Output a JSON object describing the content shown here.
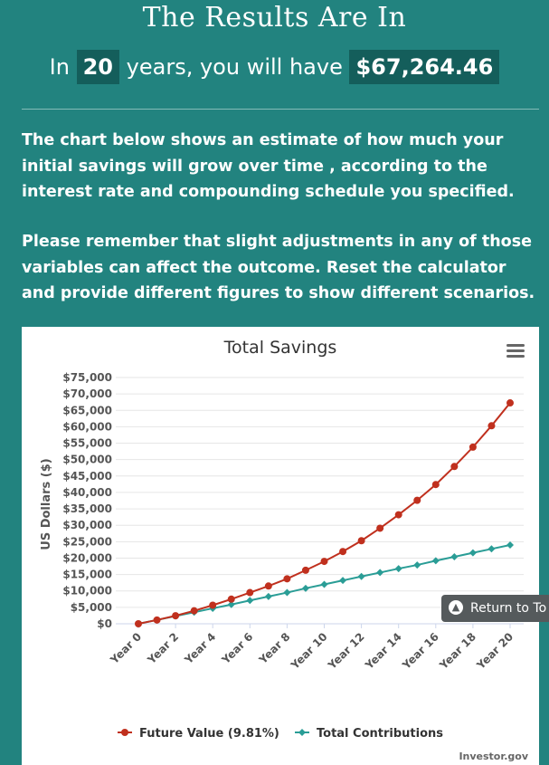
{
  "header": {
    "title": "The Results Are In",
    "summary_prefix": "In",
    "years": "20",
    "summary_middle": "years, you will have",
    "amount": "$67,264.46"
  },
  "paragraphs": [
    "The chart below shows an estimate of how much your initial savings will grow over time , according to the interest rate and compounding schedule you specified.",
    "Please remember that slight adjustments in any of those variables can affect the outcome. Reset the calculator and provide different figures to show different scenarios."
  ],
  "menu_icon": "hamburger-menu-icon",
  "return_button": {
    "label": "Return to To",
    "icon": "chevron-up-icon"
  },
  "credits": "Investor.gov",
  "colors": {
    "background": "#22837f",
    "pill": "#145e5b",
    "future": "#c0301e",
    "contrib": "#2a9d96"
  },
  "chart_data": {
    "type": "line",
    "title": "Total Savings",
    "ylabel": "US Dollars ($)",
    "xlabel": "",
    "ylim": [
      0,
      75000
    ],
    "yticks": [
      "$0",
      "$5,000",
      "$10,000",
      "$15,000",
      "$20,000",
      "$25,000",
      "$30,000",
      "$35,000",
      "$40,000",
      "$45,000",
      "$50,000",
      "$55,000",
      "$60,000",
      "$65,000",
      "$70,000",
      "$75,000"
    ],
    "xticks": [
      "Year 0",
      "Year 2",
      "Year 4",
      "Year 6",
      "Year 8",
      "Year 10",
      "Year 12",
      "Year 14",
      "Year 16",
      "Year 18",
      "Year 20"
    ],
    "x": [
      0,
      1,
      2,
      3,
      4,
      5,
      6,
      7,
      8,
      9,
      10,
      11,
      12,
      13,
      14,
      15,
      16,
      17,
      18,
      19,
      20
    ],
    "grid": true,
    "legend_position": "bottom",
    "series": [
      {
        "name": "Future Value (9.81%)",
        "color": "#c0301e",
        "marker": "circle",
        "values": [
          0,
          1150,
          2450,
          3950,
          5650,
          7500,
          9500,
          11500,
          13700,
          16300,
          19000,
          22000,
          25300,
          29100,
          33200,
          37600,
          42400,
          47900,
          53800,
          60300,
          67264
        ]
      },
      {
        "name": "Total Contributions",
        "color": "#2a9d96",
        "marker": "diamond",
        "values": [
          0,
          1150,
          2350,
          3500,
          4700,
          5850,
          7100,
          8300,
          9500,
          10800,
          12000,
          13200,
          14400,
          15600,
          16800,
          17900,
          19200,
          20400,
          21600,
          22800,
          24000
        ]
      }
    ]
  }
}
